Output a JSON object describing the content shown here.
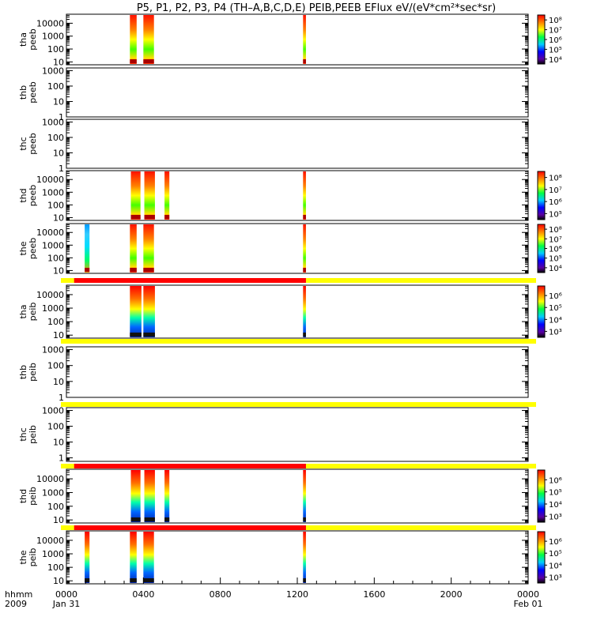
{
  "title": "P5, P1, P2, P3, P4 (TH–A,B,C,D,E) PEIB,PEEB EFlux eV/(eV*cm²*sec*sr)",
  "chart_data": {
    "type": "heatmap",
    "title": "P5, P1, P2, P3, P4 (TH–A,B,C,D,E) PEIB,PEEB EFlux eV/(eV*cm²*sec*sr)",
    "x_unit": "hhmm",
    "x_range": [
      "2009-01-31 00:00",
      "2009-02-01 00:00"
    ],
    "x_ticks": [
      {
        "hour": 0,
        "label": "0000",
        "sub": "Jan 31"
      },
      {
        "hour": 4,
        "label": "0400",
        "sub": ""
      },
      {
        "hour": 8,
        "label": "0800",
        "sub": ""
      },
      {
        "hour": 12,
        "label": "1200",
        "sub": ""
      },
      {
        "hour": 16,
        "label": "1600",
        "sub": ""
      },
      {
        "hour": 20,
        "label": "2000",
        "sub": ""
      },
      {
        "hour": 24,
        "label": "0000",
        "sub": "Feb 01"
      }
    ],
    "x_corner_label": "hhmm",
    "x_corner_sub": "2009",
    "y_scale": "log",
    "colorbar_scale": "log",
    "panels": [
      {
        "probe": "tha",
        "product": "peeb",
        "ylim": [
          6,
          50000
        ],
        "yticks": [
          10,
          100,
          1000,
          10000
        ],
        "ytick_labels": [
          "10",
          "100",
          "1000",
          "10000"
        ],
        "colorbar": {
          "ticks": [
            "10⁸",
            "10⁷",
            "10⁶",
            "10⁵",
            "10⁴"
          ],
          "exp": [
            8,
            7,
            6,
            5,
            4
          ],
          "range": [
            3.5,
            8.5
          ]
        },
        "data_intervals_hours": [
          [
            3.3,
            3.65
          ],
          [
            4.0,
            4.55
          ],
          [
            12.3,
            12.45
          ]
        ],
        "has_data": true,
        "mode_bar": null
      },
      {
        "probe": "thb",
        "product": "peeb",
        "ylim": [
          1,
          1500
        ],
        "yticks": [
          1,
          10,
          100,
          1000
        ],
        "ytick_labels": [
          "1",
          "10",
          "100",
          "1000"
        ],
        "colorbar": null,
        "data_intervals_hours": [],
        "has_data": false,
        "mode_bar": null
      },
      {
        "probe": "thc",
        "product": "peeb",
        "ylim": [
          1,
          1500
        ],
        "yticks": [
          1,
          10,
          100,
          1000
        ],
        "ytick_labels": [
          "1",
          "10",
          "100",
          "1000"
        ],
        "colorbar": null,
        "data_intervals_hours": [],
        "has_data": false,
        "mode_bar": null
      },
      {
        "probe": "thd",
        "product": "peeb",
        "ylim": [
          6,
          50000
        ],
        "yticks": [
          10,
          100,
          1000,
          10000
        ],
        "ytick_labels": [
          "10",
          "100",
          "1000",
          "10000"
        ],
        "colorbar": {
          "ticks": [
            "10⁸",
            "10⁷",
            "10⁶",
            "10⁵"
          ],
          "exp": [
            8,
            7,
            6,
            5
          ],
          "range": [
            4.5,
            8.5
          ]
        },
        "data_intervals_hours": [
          [
            3.35,
            3.85
          ],
          [
            4.05,
            4.6
          ],
          [
            5.1,
            5.35
          ],
          [
            12.3,
            12.45
          ]
        ],
        "has_data": true,
        "mode_bar": null
      },
      {
        "probe": "the",
        "product": "peeb",
        "ylim": [
          6,
          50000
        ],
        "yticks": [
          10,
          100,
          1000,
          10000
        ],
        "ytick_labels": [
          "10",
          "100",
          "1000",
          "10000"
        ],
        "colorbar": {
          "ticks": [
            "10⁸",
            "10⁷",
            "10⁶",
            "10⁵",
            "10⁴"
          ],
          "exp": [
            8,
            7,
            6,
            5,
            4
          ],
          "range": [
            3.5,
            8.5
          ]
        },
        "data_intervals_hours": [
          [
            0.95,
            1.2
          ],
          [
            3.3,
            3.65
          ],
          [
            4.0,
            4.55
          ],
          [
            12.3,
            12.45
          ]
        ],
        "has_data": true,
        "mode_bar": {
          "red": [
            0.4,
            12.45
          ],
          "total": [
            0,
            24
          ]
        }
      },
      {
        "probe": "tha",
        "product": "peib",
        "ylim": [
          6,
          50000
        ],
        "yticks": [
          10,
          100,
          1000,
          10000
        ],
        "ytick_labels": [
          "10",
          "100",
          "1000",
          "10000"
        ],
        "colorbar": {
          "ticks": [
            "10⁶",
            "10⁵",
            "10⁴",
            "10³"
          ],
          "exp": [
            6,
            5,
            4,
            3
          ],
          "range": [
            2.5,
            6.8
          ]
        },
        "data_intervals_hours": [
          [
            3.3,
            3.9
          ],
          [
            4.0,
            4.6
          ],
          [
            12.3,
            12.45
          ]
        ],
        "has_data": true,
        "mode_bar": {
          "red": null,
          "total": [
            0,
            24
          ]
        }
      },
      {
        "probe": "thb",
        "product": "peib",
        "ylim": [
          1,
          1500
        ],
        "yticks": [
          1,
          10,
          100,
          1000
        ],
        "ytick_labels": [
          "1",
          "10",
          "100",
          "1000"
        ],
        "colorbar": null,
        "data_intervals_hours": [],
        "has_data": false,
        "mode_bar": {
          "red": null,
          "total": [
            0,
            24
          ]
        }
      },
      {
        "probe": "thc",
        "product": "peib",
        "ylim": [
          0.6,
          1500
        ],
        "yticks": [
          1,
          10,
          100,
          1000
        ],
        "ytick_labels": [
          "1",
          "10",
          "100",
          "1000"
        ],
        "colorbar": null,
        "data_intervals_hours": [],
        "has_data": false,
        "mode_bar": {
          "red": [
            0.4,
            12.45
          ],
          "total": [
            0,
            24
          ]
        }
      },
      {
        "probe": "thd",
        "product": "peib",
        "ylim": [
          6,
          50000
        ],
        "yticks": [
          10,
          100,
          1000,
          10000
        ],
        "ytick_labels": [
          "10",
          "100",
          "1000",
          "10000"
        ],
        "colorbar": {
          "ticks": [
            "10⁶",
            "10⁵",
            "10⁴",
            "10³"
          ],
          "exp": [
            6,
            5,
            4,
            3
          ],
          "range": [
            2.5,
            6.8
          ]
        },
        "data_intervals_hours": [
          [
            3.35,
            3.85
          ],
          [
            4.05,
            4.6
          ],
          [
            5.1,
            5.35
          ],
          [
            12.3,
            12.45
          ]
        ],
        "has_data": true,
        "mode_bar": {
          "red": [
            0.4,
            12.45
          ],
          "total": [
            0,
            24
          ]
        }
      },
      {
        "probe": "the",
        "product": "peib",
        "ylim": [
          6,
          50000
        ],
        "yticks": [
          10,
          100,
          1000,
          10000
        ],
        "ytick_labels": [
          "10",
          "100",
          "1000",
          "10000"
        ],
        "colorbar": {
          "ticks": [
            "10⁶",
            "10⁵",
            "10⁴",
            "10³"
          ],
          "exp": [
            6,
            5,
            4,
            3
          ],
          "range": [
            2.5,
            6.8
          ]
        },
        "data_intervals_hours": [
          [
            0.95,
            1.2
          ],
          [
            3.3,
            3.65
          ],
          [
            4.0,
            4.55
          ],
          [
            12.3,
            12.45
          ]
        ],
        "has_data": true,
        "mode_bar": null
      }
    ]
  }
}
